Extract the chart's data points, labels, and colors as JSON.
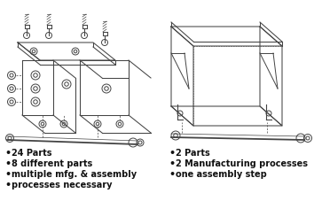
{
  "background_color": "#ffffff",
  "left_bullets": [
    "24 Parts",
    "8 different parts",
    "multiple mfg. & assembly",
    "processes necessary"
  ],
  "right_bullets": [
    "2 Parts",
    "2 Manufacturing processes",
    "one assembly step"
  ],
  "fig_width": 3.63,
  "fig_height": 2.27,
  "dpi": 100,
  "text_color": "#111111",
  "line_color": "#444444",
  "bullet_fontsize": 7.0,
  "bold_bullet_fontsize": 7.5
}
